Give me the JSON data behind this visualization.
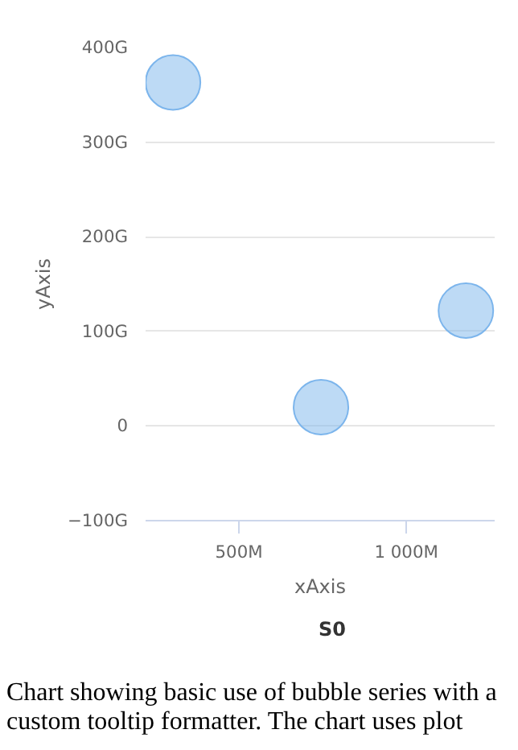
{
  "chart_data": {
    "type": "bubble",
    "x": [
      303,
      745,
      1178
    ],
    "series": [
      {
        "name": "S0",
        "color": "#7cb5ec",
        "values": [
          363,
          20,
          122
        ],
        "sizes": [
          1,
          1,
          1
        ]
      }
    ],
    "xlim": [
      221,
      1264
    ],
    "xticks": [
      {
        "value": 500,
        "label": "500M"
      },
      {
        "value": 1000,
        "label": "1 000M"
      }
    ],
    "ylim": [
      -100,
      400
    ],
    "yticks": [
      {
        "value": -100,
        "label": "−100G"
      },
      {
        "value": 0,
        "label": "0"
      },
      {
        "value": 100,
        "label": "100G"
      },
      {
        "value": 200,
        "label": "200G"
      },
      {
        "value": 300,
        "label": "300G"
      },
      {
        "value": 400,
        "label": "400G"
      }
    ],
    "xlabel": "xAxis",
    "ylabel": "yAxis",
    "grid": "y",
    "legend": "bottom",
    "annotations": [
      "Chart showing basic use of bubble series with a custom tooltip formatter. The chart uses plot"
    ]
  }
}
